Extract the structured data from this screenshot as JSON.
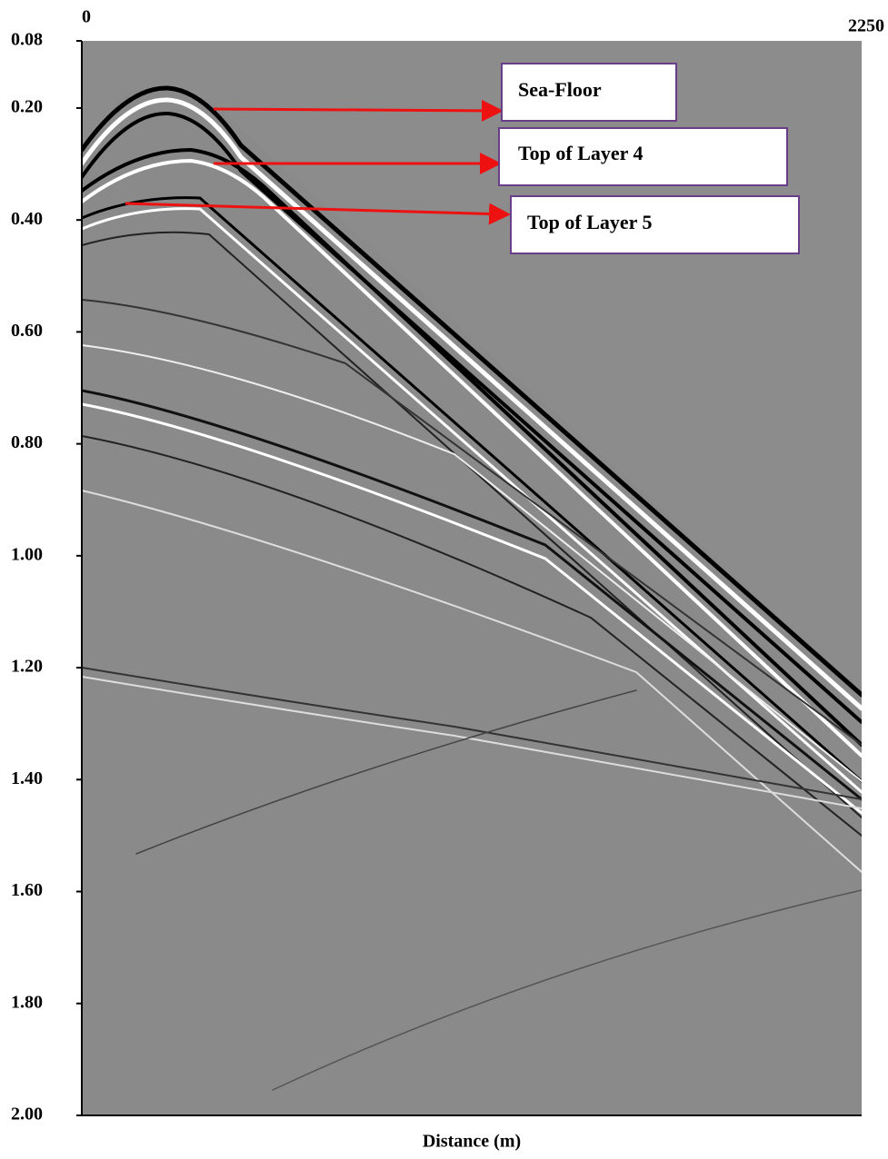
{
  "chart_data": {
    "type": "image",
    "x_label": "Distance (m)",
    "xlim": [
      0,
      2250
    ],
    "xticks": [
      0,
      2250
    ],
    "ylim": [
      0.08,
      2.0
    ],
    "yticks": [
      0.08,
      {
        "value": 0.2,
        "label": "0.20"
      },
      {
        "value": 0.4,
        "label": "0.40"
      },
      {
        "value": 0.6,
        "label": "0.60"
      },
      {
        "value": 0.8,
        "label": "0.80"
      },
      {
        "value": 1.0,
        "label": "1.00"
      },
      {
        "value": 1.2,
        "label": "1.20"
      },
      {
        "value": 1.4,
        "label": "1.40"
      },
      {
        "value": 1.6,
        "label": "1.60"
      },
      {
        "value": 1.8,
        "label": "1.80"
      },
      {
        "value": 2.0,
        "label": "2.00"
      }
    ],
    "annotations": [
      "Sea-Floor",
      "Top of Layer 4",
      "Top of Layer 5"
    ]
  }
}
